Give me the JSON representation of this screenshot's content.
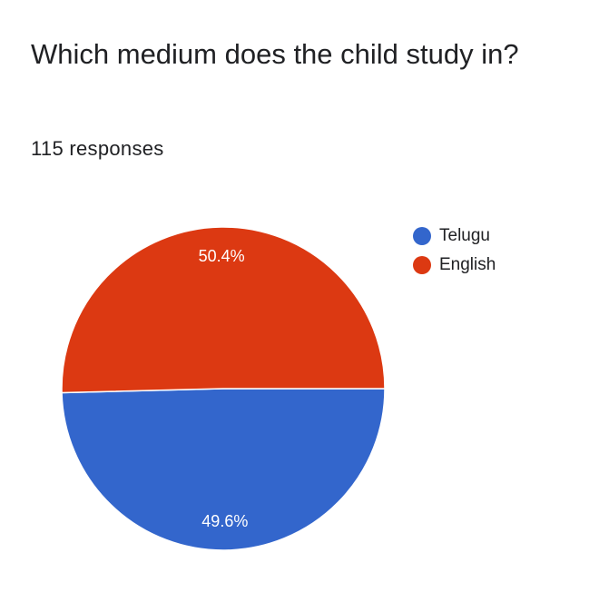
{
  "question": {
    "title": "Which medium does the child study in?",
    "response_count": "115 responses"
  },
  "chart_data": {
    "type": "pie",
    "title": "",
    "categories": [
      "Telugu",
      "English"
    ],
    "values": [
      49.6,
      50.4
    ],
    "labels": [
      "49.6%",
      "50.4%"
    ],
    "colors": [
      "#3366cc",
      "#dc3912"
    ],
    "legend_position": "right",
    "total_responses": 115
  }
}
